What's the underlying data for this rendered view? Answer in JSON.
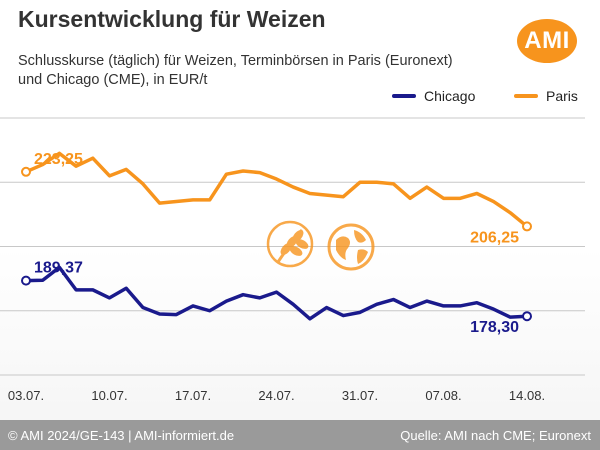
{
  "header": {
    "title": "Kursentwicklung für Weizen",
    "subtitle_line1": "Schlusskurse (täglich) für Weizen, Terminbörsen in Paris (Euronext)",
    "subtitle_line2": "und Chicago (CME), in EUR/t",
    "logo_text": "AMI"
  },
  "footer": {
    "left": "© AMI 2024/GE-143 | AMI-informiert.de",
    "right": "Quelle: AMI nach CME; Euronext"
  },
  "colors": {
    "chicago": "#1a1a8c",
    "paris": "#f7941d",
    "grid": "#c8c8c8"
  },
  "icons": [
    "wheat-icon",
    "globe-icon"
  ],
  "chart_data": {
    "type": "line",
    "title": "Kursentwicklung für Weizen",
    "ylabel": "EUR/t",
    "ylim": [
      160,
      240
    ],
    "grid": true,
    "legend_position": "top-right",
    "x_ticks": [
      "03.07.",
      "10.07.",
      "17.07.",
      "24.07.",
      "31.07.",
      "07.08.",
      "14.08."
    ],
    "x": [
      "03.07.",
      "04.07.",
      "05.07.",
      "08.07.",
      "09.07.",
      "10.07.",
      "11.07.",
      "12.07.",
      "15.07.",
      "16.07.",
      "17.07.",
      "18.07.",
      "19.07.",
      "22.07.",
      "23.07.",
      "24.07.",
      "25.07.",
      "26.07.",
      "29.07.",
      "30.07.",
      "31.07.",
      "01.08.",
      "02.08.",
      "05.08.",
      "06.08.",
      "07.08.",
      "08.08.",
      "09.08.",
      "12.08.",
      "13.08.",
      "14.08."
    ],
    "series": [
      {
        "name": "Chicago",
        "values": [
          189.37,
          189.5,
          193.5,
          186.5,
          186.5,
          184.0,
          187.0,
          181.0,
          179.0,
          178.8,
          181.5,
          180.0,
          183.0,
          185.0,
          184.0,
          185.8,
          182.0,
          177.5,
          181.0,
          178.5,
          179.5,
          182.0,
          183.5,
          181.0,
          183.0,
          181.5,
          181.5,
          182.5,
          180.5,
          178.0,
          178.3
        ],
        "end_label": "178,30",
        "start_label": "189,37"
      },
      {
        "name": "Paris",
        "values": [
          223.25,
          225.5,
          229.0,
          225.0,
          227.5,
          222.0,
          224.0,
          219.5,
          213.5,
          214.0,
          214.5,
          214.5,
          222.5,
          223.5,
          223.0,
          221.0,
          218.5,
          216.5,
          216.0,
          215.5,
          220.0,
          220.0,
          219.5,
          215.0,
          218.5,
          215.0,
          215.0,
          216.5,
          214.0,
          210.5,
          206.25
        ],
        "end_label": "206,25",
        "start_label": "223,25"
      }
    ]
  }
}
